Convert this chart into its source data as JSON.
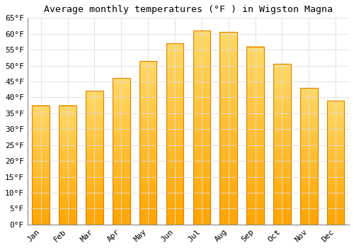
{
  "title": "Average monthly temperatures (°F ) in Wigston Magna",
  "months": [
    "Jan",
    "Feb",
    "Mar",
    "Apr",
    "May",
    "Jun",
    "Jul",
    "Aug",
    "Sep",
    "Oct",
    "Nov",
    "Dec"
  ],
  "values": [
    37.5,
    37.5,
    42,
    46,
    51.5,
    57,
    61,
    60.5,
    56,
    50.5,
    43,
    39
  ],
  "bar_color_top": "#FFD966",
  "bar_color_bottom": "#FFA500",
  "bar_edge_color": "#E08000",
  "ylim": [
    0,
    65
  ],
  "yticks": [
    0,
    5,
    10,
    15,
    20,
    25,
    30,
    35,
    40,
    45,
    50,
    55,
    60,
    65
  ],
  "ytick_labels": [
    "0°F",
    "5°F",
    "10°F",
    "15°F",
    "20°F",
    "25°F",
    "30°F",
    "35°F",
    "40°F",
    "45°F",
    "50°F",
    "55°F",
    "60°F",
    "65°F"
  ],
  "background_color": "#FFFFFF",
  "grid_color": "#DDDDDD",
  "title_fontsize": 9.5,
  "tick_fontsize": 8,
  "font_family": "monospace",
  "bar_width": 0.65
}
